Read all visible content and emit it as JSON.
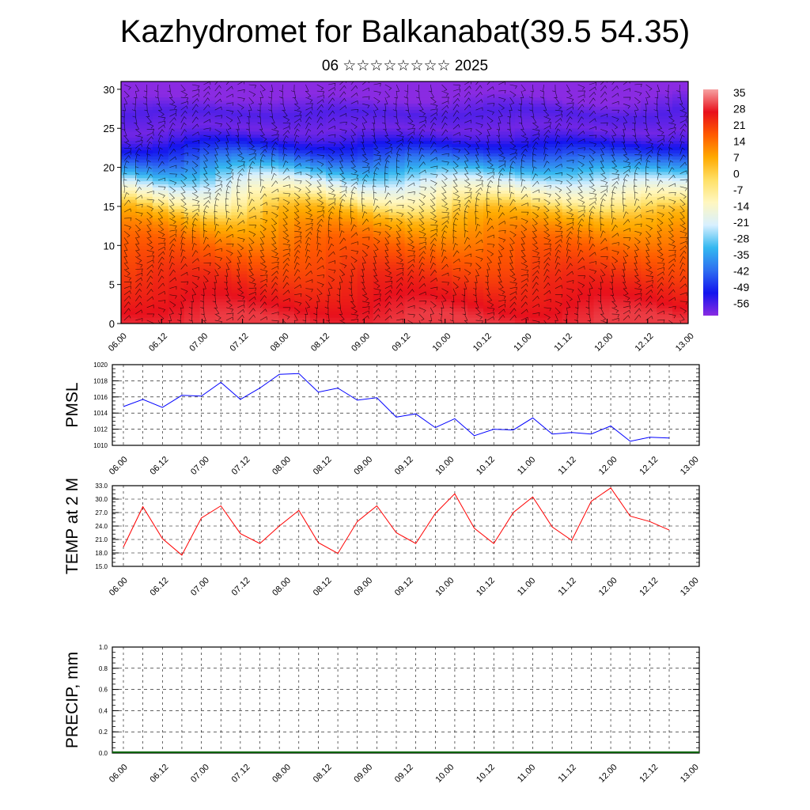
{
  "header": {
    "title": "Kazhydromet for Balkanabat(39.5 54.35)",
    "subtitle": "06 ☆☆☆☆☆☆☆☆ 2025"
  },
  "time_ticks": [
    "06.00",
    "06.12",
    "07.00",
    "07.12",
    "08.00",
    "08.12",
    "09.00",
    "09.12",
    "10.00",
    "10.12",
    "11.00",
    "11.12",
    "12.00",
    "12.12",
    "13.00"
  ],
  "colorbar": {
    "labels": [
      "35",
      "28",
      "21",
      "14",
      "7",
      "0",
      "-7",
      "-14",
      "-21",
      "-28",
      "-35",
      "-42",
      "-49",
      "-56"
    ],
    "colors_top_to_bottom": [
      "#f6a2a2",
      "#e8101c",
      "#ff5a00",
      "#ffaa00",
      "#ffe066",
      "#fff7c0",
      "#d8f0ff",
      "#34b8f0",
      "#2e6ef0",
      "#1414ee",
      "#8a2be2"
    ]
  },
  "chart_data": [
    {
      "type": "heatmap",
      "name": "cross-section",
      "xlabel": "",
      "ylabel": "",
      "x_ticks": [
        "06.00",
        "06.12",
        "07.00",
        "07.12",
        "08.00",
        "08.12",
        "09.00",
        "09.12",
        "10.00",
        "10.12",
        "11.00",
        "11.12",
        "12.00",
        "12.12",
        "13.00"
      ],
      "ylim": [
        0,
        31
      ],
      "y_ticks": [
        0,
        5,
        10,
        15,
        20,
        25,
        30
      ],
      "z_range": [
        -60,
        40
      ],
      "profile_y": [
        0,
        5,
        10,
        12,
        14,
        15,
        16,
        18,
        20,
        22,
        24,
        25,
        27,
        29,
        31
      ],
      "profile_z": [
        33,
        27,
        19,
        14,
        8,
        2,
        -6,
        -18,
        -32,
        -45,
        -55,
        -58,
        -55,
        -60,
        -62
      ],
      "wind_barbs": true
    },
    {
      "type": "line",
      "name": "PMSL",
      "ylabel": "PMSL",
      "ylim": [
        1010,
        1020
      ],
      "y_ticks": [
        "1010",
        "1012",
        "1014",
        "1016",
        "1018",
        "1020"
      ],
      "x": [
        "06.00",
        "06.06",
        "06.12",
        "06.18",
        "07.00",
        "07.06",
        "07.12",
        "07.18",
        "08.00",
        "08.06",
        "08.12",
        "08.18",
        "09.00",
        "09.06",
        "09.12",
        "09.18",
        "10.00",
        "10.06",
        "10.12",
        "10.18",
        "11.00",
        "11.06",
        "11.12",
        "11.18",
        "12.00",
        "12.06",
        "12.12",
        "12.18",
        "13.00"
      ],
      "values": [
        1014.8,
        1015.7,
        1014.7,
        1016.2,
        1016.1,
        1017.8,
        1015.7,
        1017.1,
        1018.8,
        1018.9,
        1016.6,
        1017.1,
        1015.6,
        1015.9,
        1013.5,
        1013.9,
        1012.2,
        1013.3,
        1011.2,
        1012.0,
        1011.9,
        1013.4,
        1011.4,
        1011.6,
        1011.4,
        1012.4,
        1010.5,
        1011.0,
        1010.9
      ],
      "color": "#0000ff",
      "grid": true
    },
    {
      "type": "line",
      "name": "TEMP at 2 M",
      "ylabel": "TEMP at 2 M",
      "ylim": [
        15,
        33
      ],
      "y_ticks": [
        "15.0",
        "18.0",
        "21.0",
        "24.0",
        "27.0",
        "30.0",
        "33.0"
      ],
      "x": [
        "06.00",
        "06.06",
        "06.12",
        "06.18",
        "07.00",
        "07.06",
        "07.12",
        "07.18",
        "08.00",
        "08.06",
        "08.12",
        "08.18",
        "09.00",
        "09.06",
        "09.12",
        "09.18",
        "10.00",
        "10.06",
        "10.12",
        "10.18",
        "11.00",
        "11.06",
        "11.12",
        "11.18",
        "12.00",
        "12.06",
        "12.12",
        "12.18",
        "13.00"
      ],
      "values": [
        19.3,
        28.3,
        21.2,
        17.5,
        25.8,
        28.5,
        22.3,
        20.1,
        24.0,
        27.5,
        20.3,
        17.9,
        25.0,
        28.5,
        22.5,
        20.1,
        26.8,
        31.2,
        23.5,
        20.1,
        27.0,
        30.5,
        23.8,
        20.8,
        29.5,
        32.5,
        26.2,
        25.0,
        23.1
      ],
      "color": "#ff0000",
      "grid": true
    },
    {
      "type": "bar",
      "name": "PRECIP, mm",
      "ylabel": "PRECIP, mm",
      "ylim": [
        0,
        1
      ],
      "y_ticks": [
        "0.0",
        "0.2",
        "0.4",
        "0.6",
        "0.8",
        "1.0"
      ],
      "values": [
        0,
        0,
        0,
        0,
        0,
        0,
        0,
        0,
        0,
        0,
        0,
        0,
        0,
        0,
        0,
        0,
        0,
        0,
        0,
        0,
        0,
        0,
        0,
        0,
        0,
        0,
        0,
        0
      ],
      "color": "#006400",
      "grid": true
    }
  ]
}
